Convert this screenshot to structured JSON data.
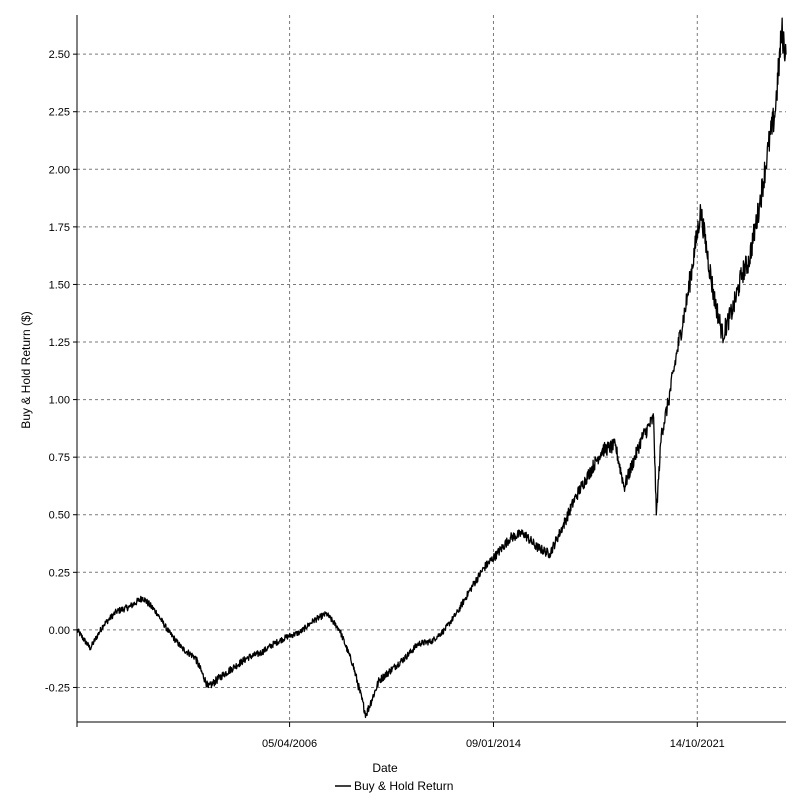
{
  "chart_data": {
    "type": "line",
    "title": "",
    "xlabel": "Date",
    "ylabel": "Buy & Hold Return ($)",
    "x_tick_labels": [
      "05/04/2006",
      "09/01/2014",
      "14/10/2021"
    ],
    "y_tick_labels": [
      "-0.25",
      "0.00",
      "0.25",
      "0.50",
      "0.75",
      "1.00",
      "1.25",
      "1.50",
      "1.75",
      "2.00",
      "2.25",
      "2.50"
    ],
    "ylim": [
      -0.4,
      2.67
    ],
    "xlim": [
      "1998-03-01",
      "2025-03-01"
    ],
    "grid": true,
    "legend_position": "bottom-center",
    "series": [
      {
        "name": "Buy & Hold Return",
        "color": "#000000",
        "x": [
          "1998-03-01",
          "1998-09-01",
          "1999-03-01",
          "1999-09-01",
          "2000-03-01",
          "2000-09-01",
          "2001-03-01",
          "2001-09-01",
          "2002-03-01",
          "2002-09-01",
          "2003-03-01",
          "2003-09-01",
          "2004-03-01",
          "2004-09-01",
          "2005-03-01",
          "2005-09-01",
          "2006-03-01",
          "2006-09-01",
          "2007-03-01",
          "2007-09-01",
          "2008-03-01",
          "2008-09-01",
          "2009-03-01",
          "2009-09-01",
          "2010-03-01",
          "2010-09-01",
          "2011-03-01",
          "2011-09-01",
          "2012-03-01",
          "2012-09-01",
          "2013-03-01",
          "2013-09-01",
          "2014-03-01",
          "2014-09-01",
          "2015-03-01",
          "2015-09-01",
          "2016-03-01",
          "2016-09-01",
          "2017-03-01",
          "2017-09-01",
          "2018-03-01",
          "2018-09-01",
          "2019-01-01",
          "2019-09-01",
          "2020-02-15",
          "2020-03-23",
          "2020-06-01",
          "2020-09-01",
          "2021-01-01",
          "2021-06-01",
          "2021-12-01",
          "2022-06-01",
          "2022-10-01",
          "2023-03-01",
          "2023-07-01",
          "2023-10-01",
          "2024-03-01",
          "2024-07-01",
          "2024-10-01",
          "2025-01-01",
          "2025-03-01"
        ],
        "values": [
          0.0,
          -0.08,
          0.02,
          0.08,
          0.1,
          0.14,
          0.08,
          -0.01,
          -0.08,
          -0.12,
          -0.25,
          -0.2,
          -0.16,
          -0.12,
          -0.1,
          -0.06,
          -0.03,
          -0.01,
          0.04,
          0.07,
          0.0,
          -0.15,
          -0.37,
          -0.22,
          -0.17,
          -0.12,
          -0.06,
          -0.05,
          0.0,
          0.08,
          0.18,
          0.27,
          0.33,
          0.4,
          0.42,
          0.36,
          0.33,
          0.45,
          0.58,
          0.68,
          0.78,
          0.8,
          0.62,
          0.83,
          0.92,
          0.5,
          0.85,
          0.98,
          1.2,
          1.45,
          1.82,
          1.45,
          1.28,
          1.4,
          1.55,
          1.6,
          1.85,
          2.1,
          2.25,
          2.6,
          2.5
        ]
      }
    ]
  }
}
